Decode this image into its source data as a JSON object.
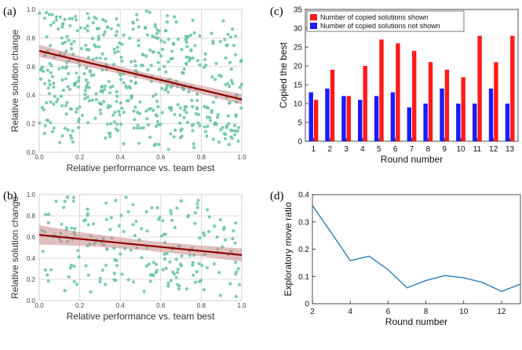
{
  "panel_labels": [
    "(a)",
    "(b)",
    "(c)",
    "(d)"
  ],
  "colors": {
    "scatter": "#66c2a5",
    "regression": "#8b0000",
    "ci_band": "#c98a8a",
    "shown": "#ff1a1a",
    "not_shown": "#1a1aff",
    "line_d": "#1f77b4",
    "panel_bg": "#ffffff",
    "grid_seaborn": "#d0d0d0"
  },
  "chart_data": [
    {
      "panel": "a",
      "type": "scatter",
      "xlabel": "Relative performance vs. team best",
      "ylabel": "Relative solution change",
      "xlim": [
        0,
        1
      ],
      "ylim": [
        0,
        1
      ],
      "xticks": [
        "0.0",
        "0.2",
        "0.4",
        "0.6",
        "0.8",
        "1.0"
      ],
      "yticks": [
        "0.0",
        "0.2",
        "0.4",
        "0.6",
        "0.8",
        "1.0"
      ],
      "grid": true,
      "regression": {
        "x": [
          0,
          1
        ],
        "y": [
          0.71,
          0.37
        ],
        "ci_halfwidth": [
          0.035,
          0.03
        ]
      },
      "scatter_count": 520,
      "scatter_seed": 7
    },
    {
      "panel": "b",
      "type": "scatter",
      "xlabel": "Relative performance vs. team best",
      "ylabel": "Relative solution change",
      "xlim": [
        0,
        1
      ],
      "ylim": [
        0,
        1
      ],
      "xticks": [
        "0.0",
        "0.2",
        "0.4",
        "0.6",
        "0.8",
        "1.0"
      ],
      "yticks": [
        "0.0",
        "0.2",
        "0.4",
        "0.6",
        "0.8",
        "1.0"
      ],
      "grid": true,
      "regression": {
        "x": [
          0,
          1
        ],
        "y": [
          0.62,
          0.43
        ],
        "ci_halfwidth": [
          0.075,
          0.05
        ]
      },
      "scatter_count": 210,
      "scatter_seed": 19
    },
    {
      "panel": "c",
      "type": "bar",
      "xlabel": "Round number",
      "ylabel": "Copied the best",
      "categories": [
        "1",
        "2",
        "3",
        "4",
        "5",
        "6",
        "7",
        "8",
        "9",
        "10",
        "11",
        "12",
        "13"
      ],
      "ylim": [
        0,
        35
      ],
      "yticks": [
        "0",
        "5",
        "10",
        "15",
        "20",
        "25",
        "30",
        "35"
      ],
      "grid": false,
      "legend_position": "top-left",
      "series": [
        {
          "name": "Number of copied solutions shown",
          "values": [
            11,
            19,
            12,
            20,
            27,
            26,
            24,
            21,
            19,
            17,
            28,
            21,
            28
          ]
        },
        {
          "name": "Number of copied solutions not shown",
          "values": [
            13,
            14,
            12,
            11,
            12,
            13,
            9,
            10,
            14,
            10,
            10,
            14,
            10
          ]
        }
      ]
    },
    {
      "panel": "d",
      "type": "line",
      "xlabel": "Round number",
      "ylabel": "Exploratory move ratio",
      "xlim": [
        2,
        13
      ],
      "ylim": [
        0,
        0.4
      ],
      "xticks": [
        "2",
        "4",
        "6",
        "8",
        "10",
        "12"
      ],
      "yticks": [
        "0",
        "0.1",
        "0.2",
        "0.3",
        "0.4"
      ],
      "grid": false,
      "x": [
        2,
        3,
        4,
        5,
        6,
        7,
        8,
        9,
        10,
        11,
        12,
        13
      ],
      "y": [
        0.36,
        0.26,
        0.158,
        0.174,
        0.125,
        0.058,
        0.085,
        0.103,
        0.095,
        0.078,
        0.045,
        0.072
      ]
    }
  ]
}
